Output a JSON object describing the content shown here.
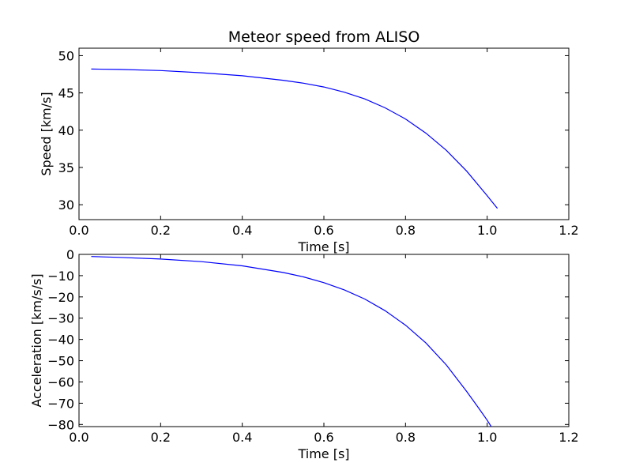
{
  "chart_data": [
    {
      "type": "line",
      "title": "Meteor speed from  ALISO",
      "xlabel": "Time [s]",
      "ylabel": "Speed [km/s]",
      "xlim": [
        0.0,
        1.2
      ],
      "ylim": [
        28,
        51
      ],
      "xticks": [
        "0.0",
        "0.2",
        "0.4",
        "0.6",
        "0.8",
        "1.0",
        "1.2"
      ],
      "yticks": [
        "30",
        "35",
        "40",
        "45",
        "50"
      ],
      "grid": false,
      "line_color": "#0000ff",
      "series": [
        {
          "x": [
            0.03,
            0.1,
            0.2,
            0.3,
            0.4,
            0.5,
            0.55,
            0.6,
            0.65,
            0.7,
            0.75,
            0.8,
            0.85,
            0.9,
            0.95,
            1.0,
            1.025
          ],
          "values": [
            48.2,
            48.15,
            48.0,
            47.7,
            47.3,
            46.7,
            46.3,
            45.8,
            45.1,
            44.2,
            43.0,
            41.5,
            39.6,
            37.3,
            34.5,
            31.2,
            29.5
          ]
        }
      ]
    },
    {
      "type": "line",
      "title": "",
      "xlabel": "Time [s]",
      "ylabel": "Acceleration [km/s/s]",
      "xlim": [
        0.0,
        1.2
      ],
      "ylim": [
        -81,
        0
      ],
      "xticks": [
        "0.0",
        "0.2",
        "0.4",
        "0.6",
        "0.8",
        "1.0",
        "1.2"
      ],
      "yticks": [
        "0",
        "−10",
        "−20",
        "−30",
        "−40",
        "−50",
        "−60",
        "−70",
        "−80"
      ],
      "grid": false,
      "line_color": "#0000ff",
      "series": [
        {
          "x": [
            0.03,
            0.1,
            0.2,
            0.3,
            0.4,
            0.5,
            0.55,
            0.6,
            0.65,
            0.7,
            0.75,
            0.8,
            0.85,
            0.9,
            0.95,
            0.98,
            1.0,
            1.01
          ],
          "values": [
            -1.0,
            -1.4,
            -2.2,
            -3.4,
            -5.4,
            -8.5,
            -10.6,
            -13.3,
            -16.7,
            -21.0,
            -26.5,
            -33.3,
            -41.7,
            -52.0,
            -64.5,
            -72.5,
            -78.0,
            -81.0
          ]
        }
      ]
    }
  ]
}
